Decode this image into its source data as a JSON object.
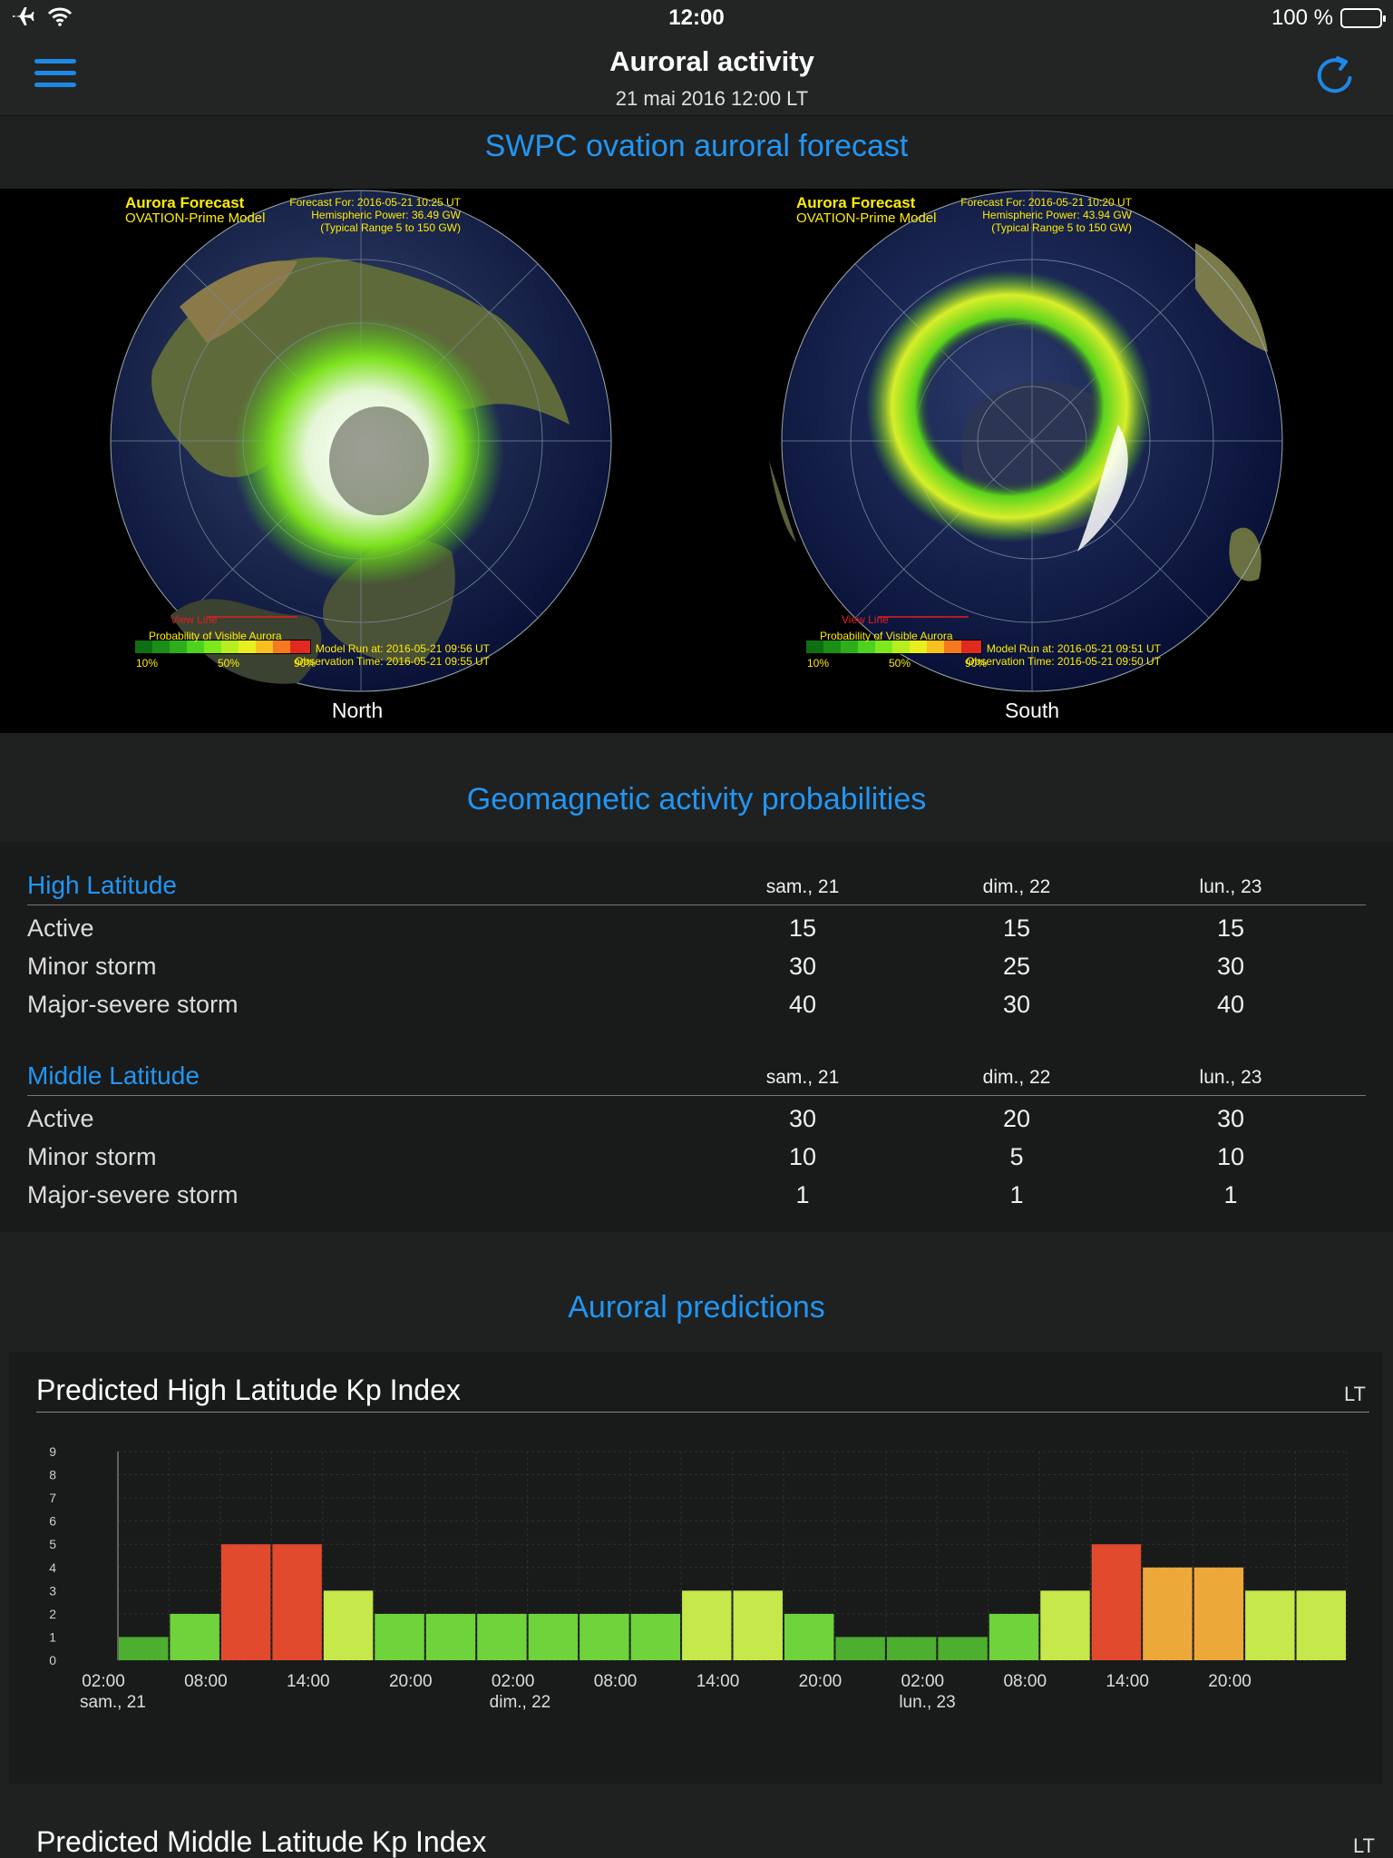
{
  "status_bar": {
    "time": "12:00",
    "battery": "100 %"
  },
  "nav": {
    "title": "Auroral activity",
    "subtitle": "21 mai 2016 12:00 LT"
  },
  "ovation": {
    "section_title": "SWPC ovation auroral forecast",
    "north": {
      "caption": "North",
      "title": "Aurora Forecast",
      "model": "OVATION-Prime Model",
      "forecast_for": "Forecast For: 2016-05-21 10:25 UT",
      "hemispheric_power": "Hemispheric Power: 36.49 GW",
      "typical_range": "(Typical Range 5 to 150 GW)",
      "view_line": "View Line",
      "probability_label": "Probability of Visible Aurora",
      "scale_10": "10%",
      "scale_50": "50%",
      "scale_90": "90%",
      "model_run": "Model Run at: 2016-05-21 09:56 UT",
      "observation_time": "Observation Time: 2016-05-21 09:55 UT"
    },
    "south": {
      "caption": "South",
      "title": "Aurora Forecast",
      "model": "OVATION-Prime Model",
      "forecast_for": "Forecast For: 2016-05-21 10:20 UT",
      "hemispheric_power": "Hemispheric Power: 43.94 GW",
      "typical_range": "(Typical Range 5 to 150 GW)",
      "view_line": "View Line",
      "probability_label": "Probability of Visible Aurora",
      "scale_10": "10%",
      "scale_50": "50%",
      "scale_90": "90%",
      "model_run": "Model Run at: 2016-05-21 09:51 UT",
      "observation_time": "Observation Time: 2016-05-21 09:50 UT"
    }
  },
  "geomagnetic": {
    "section_title": "Geomagnetic activity probabilities",
    "days": [
      "sam., 21",
      "dim., 22",
      "lun., 23"
    ],
    "high": {
      "label": "High Latitude",
      "rows": [
        {
          "label": "Active",
          "values": [
            "15",
            "15",
            "15"
          ]
        },
        {
          "label": "Minor storm",
          "values": [
            "30",
            "25",
            "30"
          ]
        },
        {
          "label": "Major-severe storm",
          "values": [
            "40",
            "30",
            "40"
          ]
        }
      ]
    },
    "middle": {
      "label": "Middle Latitude",
      "rows": [
        {
          "label": "Active",
          "values": [
            "30",
            "20",
            "30"
          ]
        },
        {
          "label": "Minor storm",
          "values": [
            "10",
            "5",
            "10"
          ]
        },
        {
          "label": "Major-severe storm",
          "values": [
            "1",
            "1",
            "1"
          ]
        }
      ]
    }
  },
  "predictions": {
    "section_title": "Auroral predictions",
    "high_chart_title": "Predicted High Latitude Kp Index",
    "middle_chart_title": "Predicted Middle Latitude Kp Index",
    "tz_label": "LT"
  },
  "colors": {
    "accent": "#2196f3",
    "kp_low": "#4caf2f",
    "kp_mid": "#6fd33b",
    "kp_moderate": "#c6e84a",
    "kp_high": "#eda83a",
    "kp_storm": "#e24a2e"
  },
  "chart_data": {
    "type": "bar",
    "title": "Predicted High Latitude Kp Index",
    "ylim": [
      0,
      9
    ],
    "yticks": [
      "0",
      "1",
      "2",
      "3",
      "4",
      "5",
      "6",
      "7",
      "8",
      "9"
    ],
    "xtick_labels": [
      "02:00",
      "08:00",
      "14:00",
      "20:00",
      "02:00",
      "08:00",
      "14:00",
      "20:00",
      "02:00",
      "08:00",
      "14:00",
      "20:00"
    ],
    "day_labels": [
      "sam., 21",
      "dim., 22",
      "lun., 23"
    ],
    "values": [
      1,
      2,
      5,
      5,
      3,
      2,
      2,
      2,
      2,
      2,
      2,
      3,
      3,
      2,
      1,
      1,
      1,
      2,
      3,
      5,
      4,
      4,
      3,
      3
    ],
    "grid": true
  }
}
